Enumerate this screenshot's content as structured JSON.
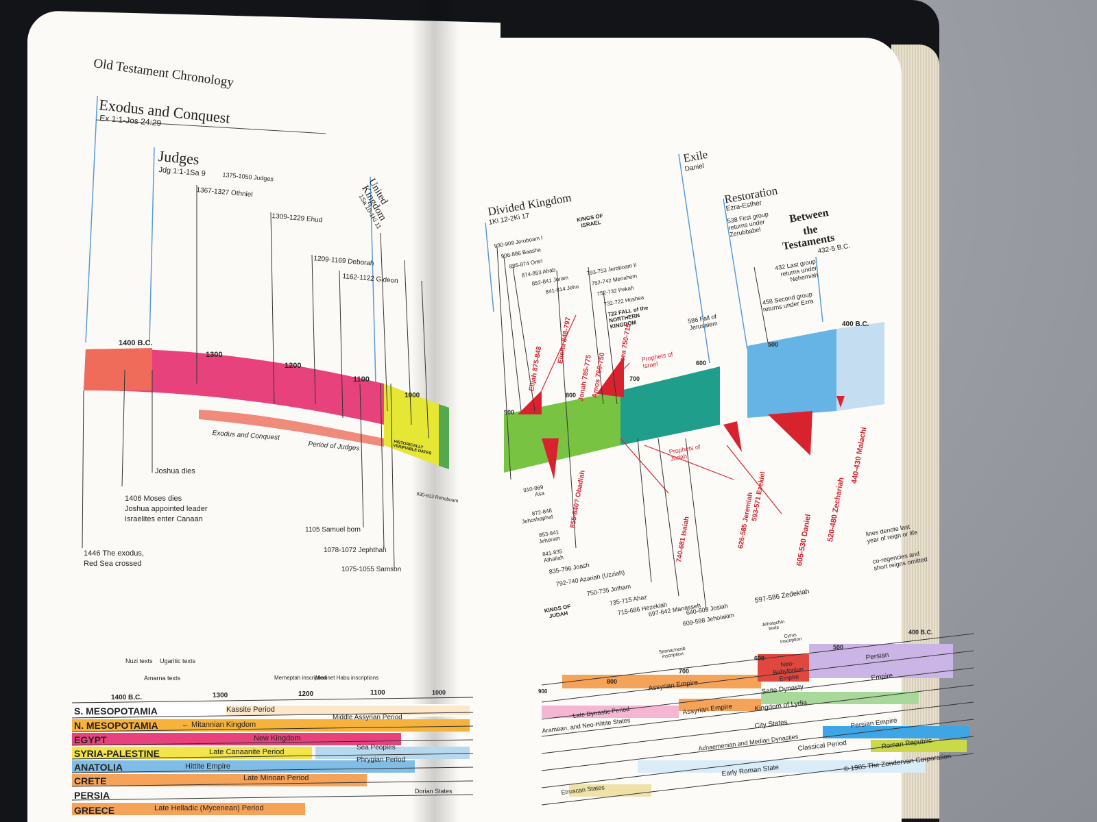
{
  "left_page": {
    "header": "Old Testament Chronology",
    "exodus": {
      "title": "Exodus and Conquest",
      "ref": "Ex 1:1-Jos 24:29"
    },
    "judges": {
      "title": "Judges",
      "ref": "Jdg 1:1-1Sa 9",
      "span": "1375-1050 Judges"
    },
    "judges_list": [
      "1367-1327 Othniel",
      "1309-1229 Ehud",
      "1209-1169 Deborah",
      "1162-1122 Gideon"
    ],
    "united": {
      "title1": "United",
      "title2": "Kingdom",
      "ref": "1Sa 10-1Ki 11"
    },
    "dates": [
      "1400 B.C.",
      "1300",
      "1200",
      "1100",
      "1000"
    ],
    "band_labels": [
      "Exodus and Conquest",
      "Period of Judges"
    ],
    "verifiable": "HISTORICALLY VERIFIABLE DATES",
    "events": [
      "Joshua dies",
      "1406 Moses dies",
      "Joshua appointed leader",
      "Israelites enter Canaan",
      "1446 The exodus,",
      "Red Sea crossed",
      "1105 Samuel born",
      "1078-1072 Jephthah",
      "1075-1055 Samson"
    ],
    "rehoboam": "930-913 Rehoboam",
    "table_dates": [
      "1400 B.C.",
      "1300",
      "1200",
      "1100",
      "1000"
    ],
    "table_notes": [
      "Nuzi texts",
      "Ugaritic texts",
      "Amarna texts",
      "Merneptah inscription",
      "Medinet Habu inscriptions"
    ],
    "rows": [
      {
        "name": "S. MESOPOTAMIA",
        "period": "Kassite Period"
      },
      {
        "name": "N. MESOPOTAMIA",
        "period": "← Mitannian Kingdom",
        "period2": "Middle Assyrian Period"
      },
      {
        "name": "EGYPT",
        "period": "New Kingdom"
      },
      {
        "name": "SYRIA-PALESTINE",
        "period": "Late Canaanite Period",
        "period2": "Sea Peoples"
      },
      {
        "name": "ANATOLIA",
        "period": "Hittite Empire",
        "period2": "Phrygian Period"
      },
      {
        "name": "CRETE",
        "period": "Late Minoan Period"
      },
      {
        "name": "PERSIA",
        "period": "Dorian States"
      },
      {
        "name": "GREECE",
        "period": "Late Helladic (Mycenean) Period"
      }
    ]
  },
  "right_page": {
    "divided": {
      "title": "Divided Kingdom",
      "ref": "1Ki 12-2Ki 17"
    },
    "kings_israel": "KINGS OF ISRAEL",
    "israel_kings": [
      "930-909 Jeroboam I",
      "906-886 Baasha",
      "885-874 Omri",
      "874-853 Ahab",
      "852-841 Joram",
      "841-814 Jehu",
      "793-753 Jeroboam II",
      "752-742 Menahem",
      "752-732 Pekah",
      "732-722 Hoshea"
    ],
    "fall_north": "722 FALL of the NORTHERN KINGDOM",
    "exile": {
      "title": "Exile",
      "ref": "Daniel"
    },
    "restoration": {
      "title": "Restoration",
      "ref": "Ezra-Esther",
      "note": "538 First group returns under Zerubbabel"
    },
    "between": {
      "title1": "Between",
      "title2": "the",
      "title3": "Testaments",
      "ref": "432-5 B.C."
    },
    "returns": [
      "432 Last group returns under Nehemiah",
      "458 Second group returns under Ezra"
    ],
    "jerusalem": "586 Fall of Jerusalem",
    "dates": [
      "900",
      "800",
      "700",
      "600",
      "500",
      "400 B.C."
    ],
    "prophets_israel": "Prophets of Israel",
    "prophets_judah": "Prophets of Judah",
    "prophets": [
      "Elijah 875-848",
      "Elisha 848-797",
      "Jonah 785-775",
      "Amos 760-750",
      "Hosea 750-715",
      "855-840? Obadiah",
      "740-681 Isaiah",
      "626-585 Jeremiah",
      "593-571 Ezekiel",
      "605-530 Daniel",
      "520-480 Zechariah",
      "440-430 Malachi"
    ],
    "judah_kings": [
      "910-869 Asa",
      "872-848 Jehoshaphat",
      "853-841 Jehoram",
      "841-835 Athaliah",
      "835-796 Joash",
      "792-740 Azariah (Uzziah)",
      "750-735 Jotham",
      "735-715 Ahaz",
      "715-686 Hezekiah",
      "697-642 Manasseh",
      "640-609 Josiah",
      "609-598 Jehoiakim",
      "597-586 Zedekiah"
    ],
    "kings_judah": "KINGS OF JUDAH",
    "notes": [
      "lines denote last year of reign or life",
      "co-regencies and short reigns omitted"
    ],
    "table_dates": [
      "900",
      "800",
      "700",
      "600",
      "500",
      "400 B.C."
    ],
    "table_notes": [
      "Sennacherib inscription",
      "Jehoiachin texts",
      "Cyrus inscription"
    ],
    "periods": [
      "Assyrian Empire",
      "Neo-Babylonian Empire",
      "Persian",
      "Empire",
      "Saite Dynasty",
      "Late Dynastic Period",
      "Assyrian Empire",
      "Kingdom of Lydia",
      "Aramean, and Neo-Hittite States",
      "City States",
      "Persian Empire",
      "Achaemenian and Median Dynasties",
      "Classical Period",
      "Roman Republic",
      "Early Roman State",
      "Etruscan States"
    ],
    "copyright": "© 1985 The Zondervan Corporation"
  }
}
